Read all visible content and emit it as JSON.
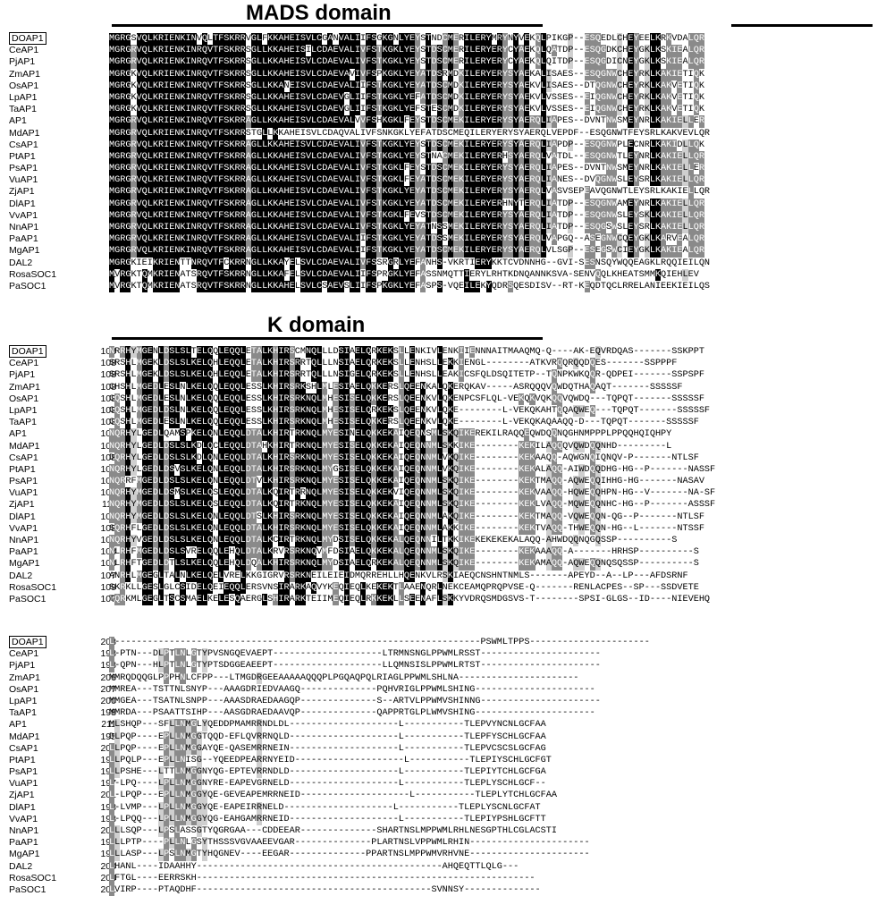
{
  "titles": {
    "mads": "MADS domain",
    "k": "K domain"
  },
  "blocks": [
    {
      "rows": [
        {
          "name": "DOAP1",
          "start": "1",
          "seq": "MGRGSVQLKRIENKINVQLTFSKRRVGLFKKAHEISVLCGANVALIIFSGKGNLYEYSTNDCMERILERYMRYNYVEKQLPIKGP--ESQEDLCHEYEELKRKVDALQR",
          "boxed": true
        },
        {
          "name": "CeAP1",
          "start": "1",
          "seq": "MGRGRVQLKRIENKINRQVTFSKRRSGLLKKAHEISILCDAEVALIVFSTKGKLYEYSTDSCMERILERYERYCYAEKQLQATDP--ESQGDKCHEYGKLKSKIEALQR",
          "boxed": false
        },
        {
          "name": "PjAP1",
          "start": "1",
          "seq": "MGRGRVQLKRIENKINRQVTFSKRRSGLLKKAHEISVLCDAEVALIVFSTKGKLYEYSTDSCMERILERYERYCYAEKQLQITDP--ESQGDICNEYGKLKSKIEALQR",
          "boxed": false
        },
        {
          "name": "ZmAP1",
          "start": "1",
          "seq": "MGRGKVQLKRIENKINRQVTFSKRRSGLLKKAHEISVLCDAEVAVIVFSPKGKLYEYATDSRMDKILERYERYSYAEKALISAES--ESQGNWCHEYRKLKAKIETIQK",
          "boxed": false
        },
        {
          "name": "OsAP1",
          "start": "1",
          "seq": "MGRGKVQLKRIENKINRQVTFSKRRSGLLKKANEISVLCDAEVALIIFSTKGKLYEYATDSCMDKILERYERYSYAEKVLISAES--DTQGNWCHEYRKLKAKVETIQK",
          "boxed": false
        },
        {
          "name": "LpAP1",
          "start": "1",
          "seq": "MGRGKVQLKRIENKINRQVTFSKRRSGLLKKAHEISVLCDAEVGLIIFSTKGKLYEFATDSCMDKILERYERYSYAEKVLVSSES--EIQGNWCHEYRKLKAKVETIQK",
          "boxed": false
        },
        {
          "name": "TaAP1",
          "start": "1",
          "seq": "MGRGKVQLKRIENKINRQVTFSKRRSGLLKKAHEISVLCDAEVGLIIFSTKGKLYEFSTESCMDKILERYERYSYAEKVLVSSES--EIQGNWCHEYRKLKAKVETIQK",
          "boxed": false
        },
        {
          "name": "AP1",
          "start": "1",
          "seq": "MGRGRVQLKRIENKINRQVTFSKRRAGLLKKAHEISVLCDAEVALVVFSHKGKLFEYSTDSCMEKILERYERYSYAERQLIAPES--DVNTNWSMEYNRLKAKIELLER",
          "boxed": false
        },
        {
          "name": "MdAP1",
          "start": "1",
          "seq": "MGRGRVQLKRIENKINRQVTFSKRRSTGLLKKAHEISVLCDAQVALIVFSNKGKLYEFATDSCMEQILERYERYSYAERQLVEPDF--ESQGNWTFEYSRLKAKVEVLQR",
          "boxed": false
        },
        {
          "name": "CsAP1",
          "start": "1",
          "seq": "MGRGRVQLKRIENKINRQVTFSKRRAGLLKKAHEISVLCDAEVALIVFSTKGKLYEYSTDSCMEKILERYERYSYAERQLIAPDP--ESQGNWPLECNRLKAKIDLLQK",
          "boxed": false
        },
        {
          "name": "PtAP1",
          "start": "1",
          "seq": "MGRGRVQLKRIENKINRQVTFSKRRAGLLKKAHEISVLCDAEVALIVFSTKGKLYEYSTNACMEKILERYERHSYAERQLVATDL--ESQGNWTLEYNRLKAKIELLQR",
          "boxed": false
        },
        {
          "name": "PsAP1",
          "start": "1",
          "seq": "MGRGRVQLKRIENKINRQVTFSKRRAGLLKKAHEISVLCDAEVALIVFSTKGKLFEYSTDSCMEKILERYERYSYAERQLIAPES--DVNTNWSMEYNRLKAKIELLER",
          "boxed": false
        },
        {
          "name": "VuAP1",
          "start": "1",
          "seq": "MGRGRVQLKRIENKINRQVTFSKRRAGLLKKAHEISVLCDAEVALIVFSTKGKLFEYATDSCMEKILERYERYSYAERQLIANES--DVQGNWSLEYSRLKAKIELLQR",
          "boxed": false
        },
        {
          "name": "ZjAP1",
          "start": "1",
          "seq": "MGRGRVQLKRIENKINRQVTFSKRRAGLLKKAHEISVLCDAEVALIVFSTKGKLYEYATDSCMEKILERYERYSYAERQLVASVSEPEAVQGNWTLEYSRLKAKIELLQR",
          "boxed": false
        },
        {
          "name": "DlAP1",
          "start": "1",
          "seq": "MGRGRVQLKRIENKINRQVTFSKRRAGLLKKAHEISVLCDAEVALIVFSTKGKLYEYATDSCMEKILERYERHNYTERQLIATDP--ESQGNWAMEYNRLKAKIELLQR",
          "boxed": false
        },
        {
          "name": "VvAP1",
          "start": "1",
          "seq": "MGRGRVQLKRIENKINRQVTFSKRRAGLLKKAHEISVLCDAEVALIVFSTKGKLFEVSTDSCMEKILERYERYSYAERQLIATDP--ESQGNWSLEYSKLKAKIELLQR",
          "boxed": false
        },
        {
          "name": "NnAP1",
          "start": "1",
          "seq": "MGRGRVQLKRIENKINRQVTFSKRRAGLLKKAHEISVLCDAEVALIVFSTKGKLYEYATNSSMEKILERYERYSYAERQLIATDP--ESQGSWSLEYSRLKAKIELLQR",
          "boxed": false
        },
        {
          "name": "PaAP1",
          "start": "1",
          "seq": "MGRGRVQLKRIENKINRQVTFSKRRAGLLKKAHEISVLCDAEVALIIFSTKGKLYEYATDSSMEKILERYERYSYAERQLVAPGQ--ASEGNWCQEYGKLKARVEALQR",
          "boxed": false
        },
        {
          "name": "MgAP1",
          "start": "1",
          "seq": "MGRGRVQLKRIENKINRQVTFSKRRAGLLKKAHEISVLCDAEVALIIFSTKGKLYEYATDSCMEKILERYERYSYAERQLVLSGP--ESEGSWCIEYGKLKAKIEALQR",
          "boxed": false
        },
        {
          "name": "DAL2",
          "start": "1",
          "seq": "MGRGKIEIKRIENTTNRQVTFCKRRNGLLKKAYELSVLCDAEVALIVFSSRGRLYEFANHS-VKRTIERYKKTCVDNNHG--GVI-SESNSQYWQQEAGKLRQQIEILQN",
          "boxed": false
        },
        {
          "name": "RosaSOC1",
          "start": "1",
          "seq": "MVRGKTQMKRIENATSRQVTFSKRRNGLLKKAFELSVLCDAEVALIIFSPRGKLYEFASSNMQTTIERYLRHTKDNQANNKSVA-SENVQQLKHEATSMMKQIEHLEV",
          "boxed": false
        },
        {
          "name": "PaSOC1",
          "start": "1",
          "seq": "MVRGKTQMKRIENATSRQVTFSKRRNGLLKKAHELSVLCSAEVSLIIFSPKGKLYEFASPS-VQEILEKYQDRSQESDISV--RT-KEQDTQCLRRELANIEEKIEILQS",
          "boxed": false
        }
      ]
    },
    {
      "rows": [
        {
          "name": "DOAP1",
          "start": "108",
          "seq": "NRRHYMGENLDSLSLTELQQLEQQLETALKHIRSCMNQLLLDSIAELQRKEKSLLENKIVLENKIIENNNAITMAAQMQ-Q----AK-EQVRDQAS-------SSKPPT",
          "boxed": true
        },
        {
          "name": "CeAP1",
          "start": "108",
          "seq": "SRSHLMGEKLDSLSLKELQHLEQQLETALKHIRSRRTQLLLNSIAELQRKEKSLLENHSLLEKKIENGL--------ATKVRQQRQQDQES-------SSPPPF",
          "boxed": false
        },
        {
          "name": "PjAP1",
          "start": "108",
          "seq": "SRSHLMGEKLDSLSLKELQHLEQQLETALKHIRSRRTQLLLNSIGELQRKEKSLLENHSLLEAKICSFQLDSQITETP--TQNPKWKQQR-QDPEI-------SSPSPF",
          "boxed": false
        },
        {
          "name": "ZmAP1",
          "start": "108",
          "seq": "CHSHLMGEDLESLNLKELQQLEQQLESSLKHIRSRKSHLMLESIAELQKKERSLQEENKALQKERQKAV-----ASRQQQVQWDQTHAQAQT-------SSSSSF",
          "boxed": false
        },
        {
          "name": "OsAP1",
          "start": "108",
          "seq": "CQSHLMGEDLESLNLKELQQLEQQLESSLKHIRSRKNQLMHESISELQKKERSLQEENKVLQKENPCSFLQL-VEKQKVQKQQVQWDQ---TQPQT-------SSSSSF",
          "boxed": false
        },
        {
          "name": "LpAP1",
          "start": "108",
          "seq": "CQSHLMGEDLDSLNLKELQQLEQQLESSLKHIRSRKNQLMHESISELQRKEKSLQEENKVLQKE--------L-VEKQKAHTQQAQWEQ---TQPQT-------SSSSSF",
          "boxed": false
        },
        {
          "name": "TaAP1",
          "start": "108",
          "seq": "CQSHLMGEDLESLNLKELQQLEQQLESSLKHIRSRKNQLMHESISELQKKERSLQEENKVLQKE--------L-VEKQKAQAAQQ-D---TQPQT-------SSSSSF",
          "boxed": false
        },
        {
          "name": "AP1",
          "start": "108",
          "seq": "NQRHYLGEDLQAMSPKELQNLEQQLDTALKHIRTRKNQLMYESINELQKKEKAIQEQNSMLSKQIKEREKILRAQQEQWDQQNQGHNMPPPLPPQQHQIQHPY",
          "boxed": false
        },
        {
          "name": "MdAP1",
          "start": "108",
          "seq": "NQRHYLGEDLDSLSLKDLQCLEQQLDTAHKHIRTRKNQLMYESISELQKKEKAIQEQNNMLSKKIKE--------KEKILAQQQVQWDQQNHD---------L",
          "boxed": false
        },
        {
          "name": "CsAP1",
          "start": "108",
          "seq": "DQRHYLGEDLDSLSLKDLQNLEQQLDTALKHIRSRKNQLMYESISELQKKEKAIQEQNNMLVKQIKE--------KEKAAQQ-AQWGNQIQNQV-P-------NTLSF",
          "boxed": false
        },
        {
          "name": "PtAP1",
          "start": "108",
          "seq": "NQRHYLGEDLDSVSLKELQNLEQQLDTALKHIRSRKNQLMYGSISELQKKEKAIQEQNNMLVKQIKE--------KEKALAQQ-AIWDQQDHG-HG--P-------NASSF",
          "boxed": false
        },
        {
          "name": "PsAP1",
          "start": "107",
          "seq": "NQRRFMGEDLDSLSLKELQNLEQQLDTVLKHIRSRKNQLMYESISELQKKEKAIQEQNNMLSKQIKE--------KEKTMAQQ-AQWEQQIHHG-HG-------NASAV",
          "boxed": false
        },
        {
          "name": "VuAP1",
          "start": "108",
          "seq": "NQRHYMGEDLDSMSLKELQSLEQQLDTALKQIRTRRNQLMYESISELQKKEKVIQEQNNMLSKQIKE--------KEKVAAQQ-HQWEQQHPN-HG--V-------NA-SF",
          "boxed": false
        },
        {
          "name": "ZjAP1",
          "start": "111",
          "seq": "NQRHYMGEDLDSLSLKELQSLEQQLDTALKQIRTRKNQLMYESISELQKKEKAIQEQNNMLSKQIKE--------KEKLVAQQ-MQWEQQNHC-HG--P-------ASSSF",
          "boxed": false
        },
        {
          "name": "DlAP1",
          "start": "108",
          "seq": "NQRHYMGEDLDSLSLKELQNLEQQLDTSLKHIRSRKNQLMYESISELQKKEKAIQEQNNMLAKQIKE--------KEKTMAQQ-VQWEQQN-QG--P-------NTLSF",
          "boxed": false
        },
        {
          "name": "VvAP1",
          "start": "108",
          "seq": "SQRHFLGEDLDSLSLKELQNLEQQLDTALKHIRSRKNQLMYESISELQKKEKAIQEQNNMLAKKIKE--------KEKTVAQQ-THWEQQN-HG--L-------NTSSF",
          "boxed": false
        },
        {
          "name": "NnAP1",
          "start": "108",
          "seq": "NQRHYVGEDLDSLSLKELQNLEQQLDTALKCIRTRKNQLMYDSISELQKKEKALQEQNNILTKKIKEKEKEKEKALAQQ-AHWDQQNQGQSSP----------S",
          "boxed": false
        },
        {
          "name": "PaAP1",
          "start": "108",
          "seq": "NLRHFMGEDLDSLSVRELQQLEHQLDTALKRVRSRKNQVMFDSIAELQKKEKALQEQNNMLSKQIKE--------KEKAAAQQ-A-------HRHSP----------S",
          "boxed": false
        },
        {
          "name": "MgAP1",
          "start": "108",
          "seq": "NLRHFTGEDLDTLSLKELQQLEHQLDQALKHIRSRKNQLMYDSIAELQRKEKALQEQNNMLSKQIKE--------KEKAMAQQ-AQWEQQNQSQSSP----------S",
          "boxed": false
        },
        {
          "name": "DAL2",
          "start": "107",
          "seq": "ANRHLMGEGLTALNLKELQELVRELKKGIGRVRSRKNEILEIEIDMQRREHLLHQENKVLRSKIAEQCNSHNTNMLS-------APEYD--A--LP---AFDSRNF",
          "boxed": false
        },
        {
          "name": "RosaSOC1",
          "start": "109",
          "seq": "SKRKLLGESLGLCSIDELQEIEQQLERSVNSIRARKAQVYKEQIEQLKEKEKTLAAENQRLNEKCEAMQPRQPVSE-Q-------RENLACPES--SP---SSDVETE",
          "boxed": false
        },
        {
          "name": "PaSOC1",
          "start": "107",
          "seq": "TQRKMLGEGLTSCSMAELKELESQAERGLSHIRARKTEIIMEQIEQLRKKEKLLSEENAFLSKKYVDRQSMDGSVS-T--------SPSI-GLGS--ID----NIEVEHQ",
          "boxed": false
        }
      ]
    },
    {
      "rows": [
        {
          "name": "DOAP1",
          "start": "203",
          "seq": "L-------------------------------------------------------------------PSWMLTPPS----------------------",
          "boxed": true
        },
        {
          "name": "CeAP1",
          "start": "198",
          "seq": "L-PTN---DLPTLNLGTYPVSNGQEVAEPT--------------------LTRMNSNGLPPWMLRSST----------------------",
          "boxed": false
        },
        {
          "name": "PjAP1",
          "start": "198",
          "seq": "L-QPN---HLPTLNLGTYPTSDGGEAEEPT--------------------LLQMNSISLPPWMLRTST----------------------",
          "boxed": false
        },
        {
          "name": "ZmAP1",
          "start": "206",
          "seq": "MMRQDQQGLPPPHNLCFPP---LTMGDRGEEAAAAAQQQPLPGQAQPQLRIAGLPPWMLSHLNA----------------------",
          "boxed": false
        },
        {
          "name": "OsAP1",
          "start": "207",
          "seq": "MMREA---TSTTNLSNYP---AAAGDRIEDVAAGQ--------------PQHVRIGLPPWMLSHING----------------------",
          "boxed": false
        },
        {
          "name": "LpAP1",
          "start": "200",
          "seq": "MMGEA---TSATNLSNPP---AAASDRAEDAAGQP--------------S--ARTVLPPWMVSHINNG----------------------",
          "boxed": false
        },
        {
          "name": "TaAP1",
          "start": "198",
          "seq": "MMRDA---PSAATTSIHP---AASGDRAEDAAVQP--------------QAPPRTGLPLWMVSHING----------------------",
          "boxed": false
        },
        {
          "name": "AP1",
          "start": "211",
          "seq": "MLSHQP---SFLLNMGLYQEDDPMAMRRNDLDL--------------------L-----------TLEPVYNCNLGCFAA",
          "boxed": false
        },
        {
          "name": "MdAP1",
          "start": "195",
          "seq": "DLPQP----EPLLNMGGTQQD-EFLQVRRNQLD--------------------L-----------TLEPFYSCHLGCFAA",
          "boxed": false
        },
        {
          "name": "CsAP1",
          "start": "200",
          "seq": "LLPQP----EPLLNMGGAYQE-QASEMRRNEIN--------------------L-----------TLEPVCSCSLGCFAG",
          "boxed": false
        },
        {
          "name": "PtAP1",
          "start": "198",
          "seq": "LLPQLP---EPLLNISG--YQEEDPEARRNYEID--------------------L-----------TLEPIYSCHLGCFGT",
          "boxed": false
        },
        {
          "name": "PsAP1",
          "start": "198",
          "seq": "LLPSHE---LTTLNMGGNYQG-EPTEVRRNDLD--------------------L-----------TLEPIYTCHLGCFGA",
          "boxed": false
        },
        {
          "name": "VuAP1",
          "start": "197",
          "seq": "L-LPQ----LPLLNMGGNYRE-EAPEVGRNELD--------------------L-----------TLEPLYSCHLGCF--",
          "boxed": false
        },
        {
          "name": "ZjAP1",
          "start": "201",
          "seq": "L-LPQP---EPLLNMGGYQE-GEVEAPEMRRNEID--------------------L-----------TLEPLYTCHLGCFAA",
          "boxed": false
        },
        {
          "name": "DlAP1",
          "start": "198",
          "seq": "L-LVMP---LPLLNMGGYQE-EAPEIRRNELD--------------------L-----------TLEPLYSCNLGCFAT",
          "boxed": false
        },
        {
          "name": "VvAP1",
          "start": "198",
          "seq": "L-LPQQ---LPLLNMGGYQG-EAHGAMRRNEID--------------------L-----------TLEPIYPSHLGCFTT",
          "boxed": false
        },
        {
          "name": "NnAP1",
          "start": "203",
          "seq": "LLLSQP---LPSLASSGTYQGRGAA---CDDEEAR--------------SHARTNSLMPPWMLRHLNESGPTHLCGLACSTI",
          "boxed": false
        },
        {
          "name": "PaAP1",
          "start": "190",
          "seq": "LLLPTP----PLLNLGSYTHSSSVGVAAEEVGAR--------------PLARTNSLVPPWMLRHIN----------------------",
          "boxed": false
        },
        {
          "name": "MgAP1",
          "start": "197",
          "seq": "LLLASP---LPSLNMGTYHQGNEV----EEGAR--------------PPARTNSLMPPWMVRHVNE----------------------",
          "boxed": false
        },
        {
          "name": "DAL2",
          "start": "200",
          "seq": "LHANL----IDAAHHY---------------------------------------------AHQEQTTLQLG---",
          "boxed": false
        },
        {
          "name": "RosaSOC1",
          "start": "204",
          "seq": "LFTGL----EERRSKH--------------------------------------------------------------",
          "boxed": false
        },
        {
          "name": "PaSOC1",
          "start": "201",
          "seq": "LVIRP----PTAQDHF-------------------------------------------SVNNSY--------------",
          "boxed": false
        }
      ]
    }
  ]
}
